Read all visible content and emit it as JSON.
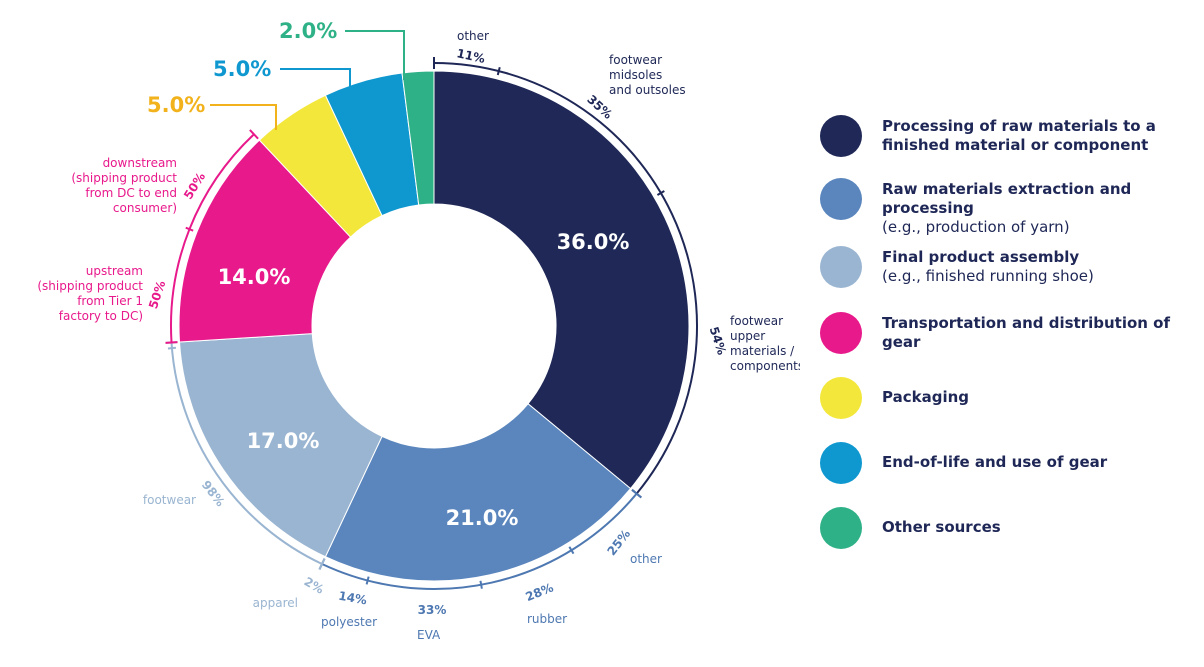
{
  "chart_data": {
    "type": "donut",
    "title": "",
    "slices": [
      {
        "key": "processing",
        "label": "36.0%",
        "value": 36.0,
        "color": "#1f2857"
      },
      {
        "key": "raw",
        "label": "21.0%",
        "value": 21.0,
        "color": "#5a86bd"
      },
      {
        "key": "assembly",
        "label": "17.0%",
        "value": 17.0,
        "color": "#9ab5d1"
      },
      {
        "key": "transport",
        "label": "14.0%",
        "value": 14.0,
        "color": "#e8198b"
      },
      {
        "key": "packaging",
        "label": "5.0%",
        "value": 5.0,
        "color": "#f3e73b",
        "labelColor": "#f2b21c"
      },
      {
        "key": "eol",
        "label": "5.0%",
        "value": 5.0,
        "color": "#0f98d0",
        "labelColor": "#0f98d0"
      },
      {
        "key": "other",
        "label": "2.0%",
        "value": 2.0,
        "color": "#2fb187",
        "labelColor": "#2fb187"
      }
    ],
    "breakdowns": [
      {
        "slice": "processing",
        "color": "#1e2756",
        "segments": [
          {
            "value": 11,
            "pct": "11%",
            "label": "other"
          },
          {
            "value": 35,
            "pct": "35%",
            "label": "footwear\nmidsoles\nand outsoles"
          },
          {
            "value": 54,
            "pct": "54%",
            "label": "footwear\nupper\nmaterials /\ncomponents"
          }
        ]
      },
      {
        "slice": "raw",
        "color": "#4e78b1",
        "segments": [
          {
            "value": 25,
            "pct": "25%",
            "label": "other"
          },
          {
            "value": 28,
            "pct": "28%",
            "label": "rubber"
          },
          {
            "value": 33,
            "pct": "33%",
            "label": "EVA"
          },
          {
            "value": 14,
            "pct": "14%",
            "label": "polyester"
          }
        ]
      },
      {
        "slice": "assembly",
        "color": "#9ab5d1",
        "segments": [
          {
            "value": 98,
            "pct": "98%",
            "label": "footwear"
          },
          {
            "value": 2,
            "pct": "2%",
            "label": "apparel"
          }
        ]
      },
      {
        "slice": "transport",
        "color": "#e8198b",
        "segments": [
          {
            "value": 50,
            "pct": "50%",
            "label": "upstream\n(shipping product\nfrom Tier 1\nfactory to DC)"
          },
          {
            "value": 50,
            "pct": "50%",
            "label": "downstream\n(shipping product\nfrom DC to end\nconsumer)"
          }
        ]
      }
    ]
  },
  "legend": [
    {
      "title": "Processing of raw materials to a finished material or component",
      "note": "",
      "color": "#1f2857"
    },
    {
      "title": "Raw materials extraction and processing",
      "note": "(e.g., production of yarn)",
      "color": "#5a86bd"
    },
    {
      "title": "Final product assembly",
      "note": "(e.g., finished running shoe)",
      "color": "#9ab5d1"
    },
    {
      "title": "Transportation and distribution of gear",
      "note": "",
      "color": "#e8198b"
    },
    {
      "title": "Packaging",
      "note": "",
      "color": "#f3e73b"
    },
    {
      "title": "End-of-life and use of gear",
      "note": "",
      "color": "#0f98d0"
    },
    {
      "title": "Other sources",
      "note": "",
      "color": "#2fb187"
    }
  ]
}
